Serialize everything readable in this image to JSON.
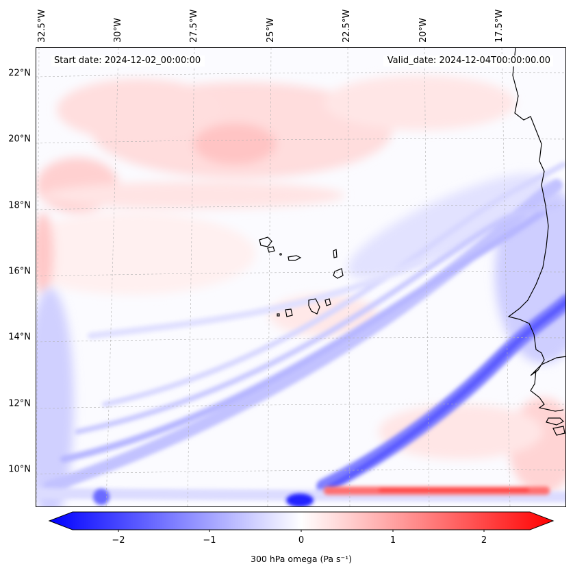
{
  "header": {
    "start_date": "Start date: 2024-12-02_00:00:00",
    "valid_date": "Valid_date: 2024-12-04T00:00:00.00"
  },
  "map": {
    "lat_labels": [
      "22°N",
      "20°N",
      "18°N",
      "16°N",
      "14°N",
      "12°N",
      "10°N"
    ],
    "lon_labels": [
      "32.5°W",
      "30°W",
      "27.5°W",
      "25°W",
      "22.5°W",
      "20°W",
      "17.5°W"
    ],
    "islands": [
      "Santo Antão",
      "São Vicente",
      "São Nicolau",
      "Sal",
      "Boa Vista",
      "Santiago",
      "Fogo",
      "Brava",
      "Maio"
    ]
  },
  "colorbar": {
    "label": "300 hPa omega (Pa s⁻¹)",
    "ticks": [
      "−2",
      "−1",
      "0",
      "1",
      "2"
    ],
    "range": [
      -2.7,
      2.7
    ],
    "colors": {
      "negative": "#0000ff",
      "zero": "#ffffff",
      "positive": "#ff0000"
    }
  }
}
